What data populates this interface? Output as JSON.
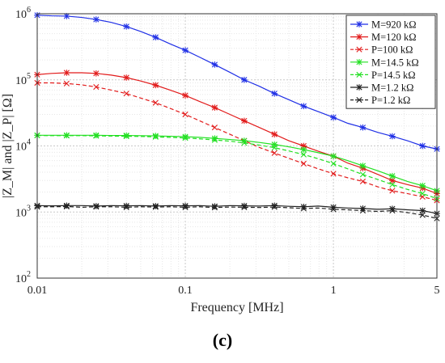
{
  "caption": "(c)",
  "chart_data": {
    "type": "line",
    "xlabel": "Frequency [MHz]",
    "ylabel": "|Z_M| and |Z_P| [Ω]",
    "x_scale": "log",
    "y_scale": "log",
    "xlim": [
      0.01,
      5
    ],
    "ylim": [
      100,
      1000000
    ],
    "x_ticks": [
      0.01,
      0.1,
      1,
      5
    ],
    "x_tick_labels": [
      "0.01",
      "0.1",
      "1",
      "5"
    ],
    "y_ticks": [
      100,
      1000,
      10000,
      100000,
      1000000
    ],
    "y_tick_labels": [
      [
        "10",
        "2"
      ],
      [
        "10",
        "3"
      ],
      [
        "10",
        "4"
      ],
      [
        "10",
        "5"
      ],
      [
        "10",
        "6"
      ]
    ],
    "grid": true,
    "legend_position": "top-right",
    "x": [
      0.01,
      0.0125,
      0.0158,
      0.02,
      0.025,
      0.0316,
      0.04,
      0.05,
      0.063,
      0.079,
      0.1,
      0.125,
      0.158,
      0.2,
      0.25,
      0.316,
      0.4,
      0.5,
      0.63,
      0.79,
      1.0,
      1.25,
      1.58,
      2.0,
      2.5,
      3.16,
      4.0,
      5.0
    ],
    "series": [
      {
        "name": "M=920 kΩ",
        "color": "#1f2fe6",
        "dash": "solid",
        "marker": "star",
        "values": [
          950000,
          930000,
          920000,
          880000,
          820000,
          740000,
          640000,
          540000,
          440000,
          350000,
          280000,
          220000,
          170000,
          130000,
          100000,
          80000,
          62000,
          50000,
          40000,
          33000,
          27000,
          22000,
          19000,
          16000,
          14000,
          12000,
          10000,
          9000
        ]
      },
      {
        "name": "M=120 kΩ",
        "color": "#e21b1b",
        "dash": "solid",
        "marker": "star",
        "values": [
          120000,
          125000,
          128000,
          128000,
          125000,
          118000,
          108000,
          96000,
          83000,
          70000,
          58000,
          47000,
          38000,
          30000,
          24000,
          19000,
          15000,
          12000,
          10000,
          8300,
          7000,
          5500,
          4600,
          3700,
          3000,
          2600,
          2300,
          1900
        ]
      },
      {
        "name": "P=100 kΩ",
        "color": "#e21b1b",
        "dash": "dashed",
        "marker": "x",
        "values": [
          90000,
          90000,
          88000,
          84000,
          78000,
          70000,
          62000,
          53000,
          45000,
          37000,
          30000,
          24000,
          19000,
          15000,
          12000,
          9500,
          7800,
          6500,
          5400,
          4500,
          3800,
          3300,
          2900,
          2400,
          2100,
          1900,
          1700,
          1500
        ]
      },
      {
        "name": "M=14.5 kΩ",
        "color": "#22e022",
        "dash": "solid",
        "marker": "star",
        "values": [
          14500,
          14500,
          14500,
          14500,
          14500,
          14400,
          14400,
          14300,
          14200,
          14000,
          13800,
          13500,
          13000,
          12500,
          12000,
          11300,
          10500,
          9700,
          8800,
          7900,
          7000,
          6000,
          5000,
          4200,
          3500,
          2900,
          2500,
          2100
        ]
      },
      {
        "name": "P=14.5 kΩ",
        "color": "#22e022",
        "dash": "dashed",
        "marker": "x",
        "values": [
          14400,
          14300,
          14300,
          14300,
          14200,
          14100,
          14000,
          13900,
          13700,
          13500,
          13200,
          12800,
          12300,
          11800,
          11100,
          10300,
          9400,
          8400,
          7400,
          6400,
          5400,
          4500,
          3700,
          3100,
          2600,
          2200,
          1900,
          1600
        ]
      },
      {
        "name": "M=1.2 kΩ",
        "color": "#222222",
        "dash": "solid",
        "marker": "star",
        "values": [
          1250,
          1240,
          1250,
          1250,
          1230,
          1250,
          1240,
          1250,
          1230,
          1250,
          1240,
          1250,
          1220,
          1250,
          1240,
          1230,
          1250,
          1220,
          1200,
          1230,
          1180,
          1150,
          1130,
          1100,
          1120,
          1080,
          1050,
          950
        ]
      },
      {
        "name": "P=1.2 kΩ",
        "color": "#222222",
        "dash": "dashed",
        "marker": "x",
        "values": [
          1200,
          1200,
          1210,
          1180,
          1200,
          1200,
          1180,
          1200,
          1190,
          1200,
          1180,
          1200,
          1170,
          1190,
          1180,
          1170,
          1190,
          1160,
          1130,
          1150,
          1100,
          1080,
          1050,
          1020,
          1050,
          980,
          900,
          800
        ]
      }
    ]
  }
}
